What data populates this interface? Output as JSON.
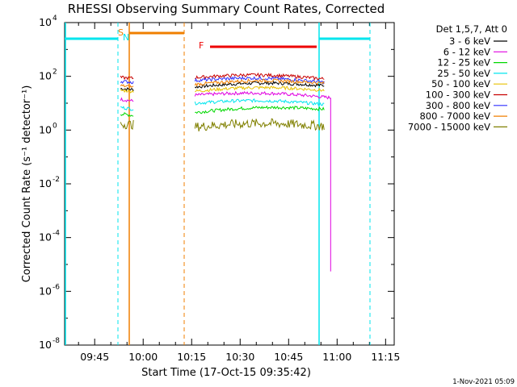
{
  "colors": {
    "background": "#ffffff",
    "axes": "#000000",
    "cyan": "#00e5ee",
    "orange": "#f07f00",
    "red": "#ee0000"
  },
  "chart_data": {
    "type": "line",
    "title": "RHESSI Observing Summary Count Rates, Corrected",
    "xlabel": "Start Time (17-Oct-15 09:35:42)",
    "ylabel": "Corrected Count Rate (s⁻¹ detector⁻¹)",
    "y_scale": "log",
    "ylim": [
      1e-08,
      10000
    ],
    "xlim": [
      "09:35:42",
      "11:17:40"
    ],
    "x_ticks": [
      "09:45",
      "10:00",
      "10:15",
      "10:30",
      "10:45",
      "11:00",
      "11:15"
    ],
    "y_ticks": [
      {
        "base": "10",
        "exp": "4",
        "value": 10000
      },
      {
        "base": "10",
        "exp": "2",
        "value": 100
      },
      {
        "base": "10",
        "exp": "0",
        "value": 1
      },
      {
        "base": "10",
        "exp": "-2",
        "value": 0.01
      },
      {
        "base": "10",
        "exp": "-4",
        "value": 0.0001
      },
      {
        "base": "10",
        "exp": "-6",
        "value": 1e-06
      },
      {
        "base": "10",
        "exp": "-8",
        "value": 1e-08
      }
    ],
    "legend_title": "Det 1,5,7, Att 0",
    "legend_position": "right",
    "series": [
      {
        "name": "3 - 6 keV",
        "color": "#000000",
        "segments": [
          {
            "x": [
              "09:53",
              "09:57"
            ],
            "y": [
              35,
              32
            ]
          },
          {
            "x": [
              "10:16",
              "10:56"
            ],
            "y": [
              40,
              45
            ]
          }
        ]
      },
      {
        "name": "6 - 12 keV",
        "color": "#e000e0",
        "segments": [
          {
            "x": [
              "09:53",
              "09:57"
            ],
            "y": [
              14,
              12
            ]
          },
          {
            "x": [
              "10:16",
              "10:58"
            ],
            "y": [
              20,
              16
            ]
          }
        ]
      },
      {
        "name": "12 - 25 keV",
        "color": "#00d800",
        "segments": [
          {
            "x": [
              "09:53",
              "09:57"
            ],
            "y": [
              4,
              3.5
            ]
          },
          {
            "x": [
              "10:16",
              "10:56"
            ],
            "y": [
              4.5,
              6
            ]
          }
        ]
      },
      {
        "name": "25 - 50 keV",
        "color": "#00e5ee",
        "segments": [
          {
            "x": [
              "09:53",
              "09:57"
            ],
            "y": [
              7,
              6
            ]
          },
          {
            "x": [
              "10:16",
              "10:56"
            ],
            "y": [
              10,
              9
            ]
          }
        ]
      },
      {
        "name": "50 - 100 keV",
        "color": "#e8c000",
        "segments": [
          {
            "x": [
              "09:53",
              "09:57"
            ],
            "y": [
              30,
              28
            ]
          },
          {
            "x": [
              "10:16",
              "10:56"
            ],
            "y": [
              28,
              30
            ]
          }
        ]
      },
      {
        "name": "100 - 300 keV",
        "color": "#c80000",
        "segments": [
          {
            "x": [
              "09:53",
              "09:57"
            ],
            "y": [
              90,
              85
            ]
          },
          {
            "x": [
              "10:16",
              "10:56"
            ],
            "y": [
              90,
              80
            ]
          }
        ]
      },
      {
        "name": "300 - 800 keV",
        "color": "#2f2fff",
        "segments": [
          {
            "x": [
              "09:53",
              "09:57"
            ],
            "y": [
              65,
              60
            ]
          },
          {
            "x": [
              "10:16",
              "10:56"
            ],
            "y": [
              70,
              60
            ]
          }
        ]
      },
      {
        "name": "800 - 7000 keV",
        "color": "#f07f00",
        "segments": [
          {
            "x": [
              "09:53",
              "09:57"
            ],
            "y": [
              45,
              40
            ]
          },
          {
            "x": [
              "10:16",
              "10:56"
            ],
            "y": [
              50,
              55
            ]
          }
        ]
      },
      {
        "name": "7000 - 15000 keV",
        "color": "#808000",
        "segments": [
          {
            "x": [
              "09:53",
              "09:57"
            ],
            "y": [
              1.7,
              1.6
            ]
          },
          {
            "x": [
              "10:16",
              "10:56"
            ],
            "y": [
              1.3,
              1.4
            ]
          }
        ]
      }
    ],
    "annotations": [
      {
        "label": "S",
        "color": "#f07f00"
      },
      {
        "label": "N",
        "color": "#00e5ee"
      },
      {
        "label": "F",
        "color": "#ee0000"
      }
    ],
    "stamp": "1-Nov-2021 05:09"
  }
}
